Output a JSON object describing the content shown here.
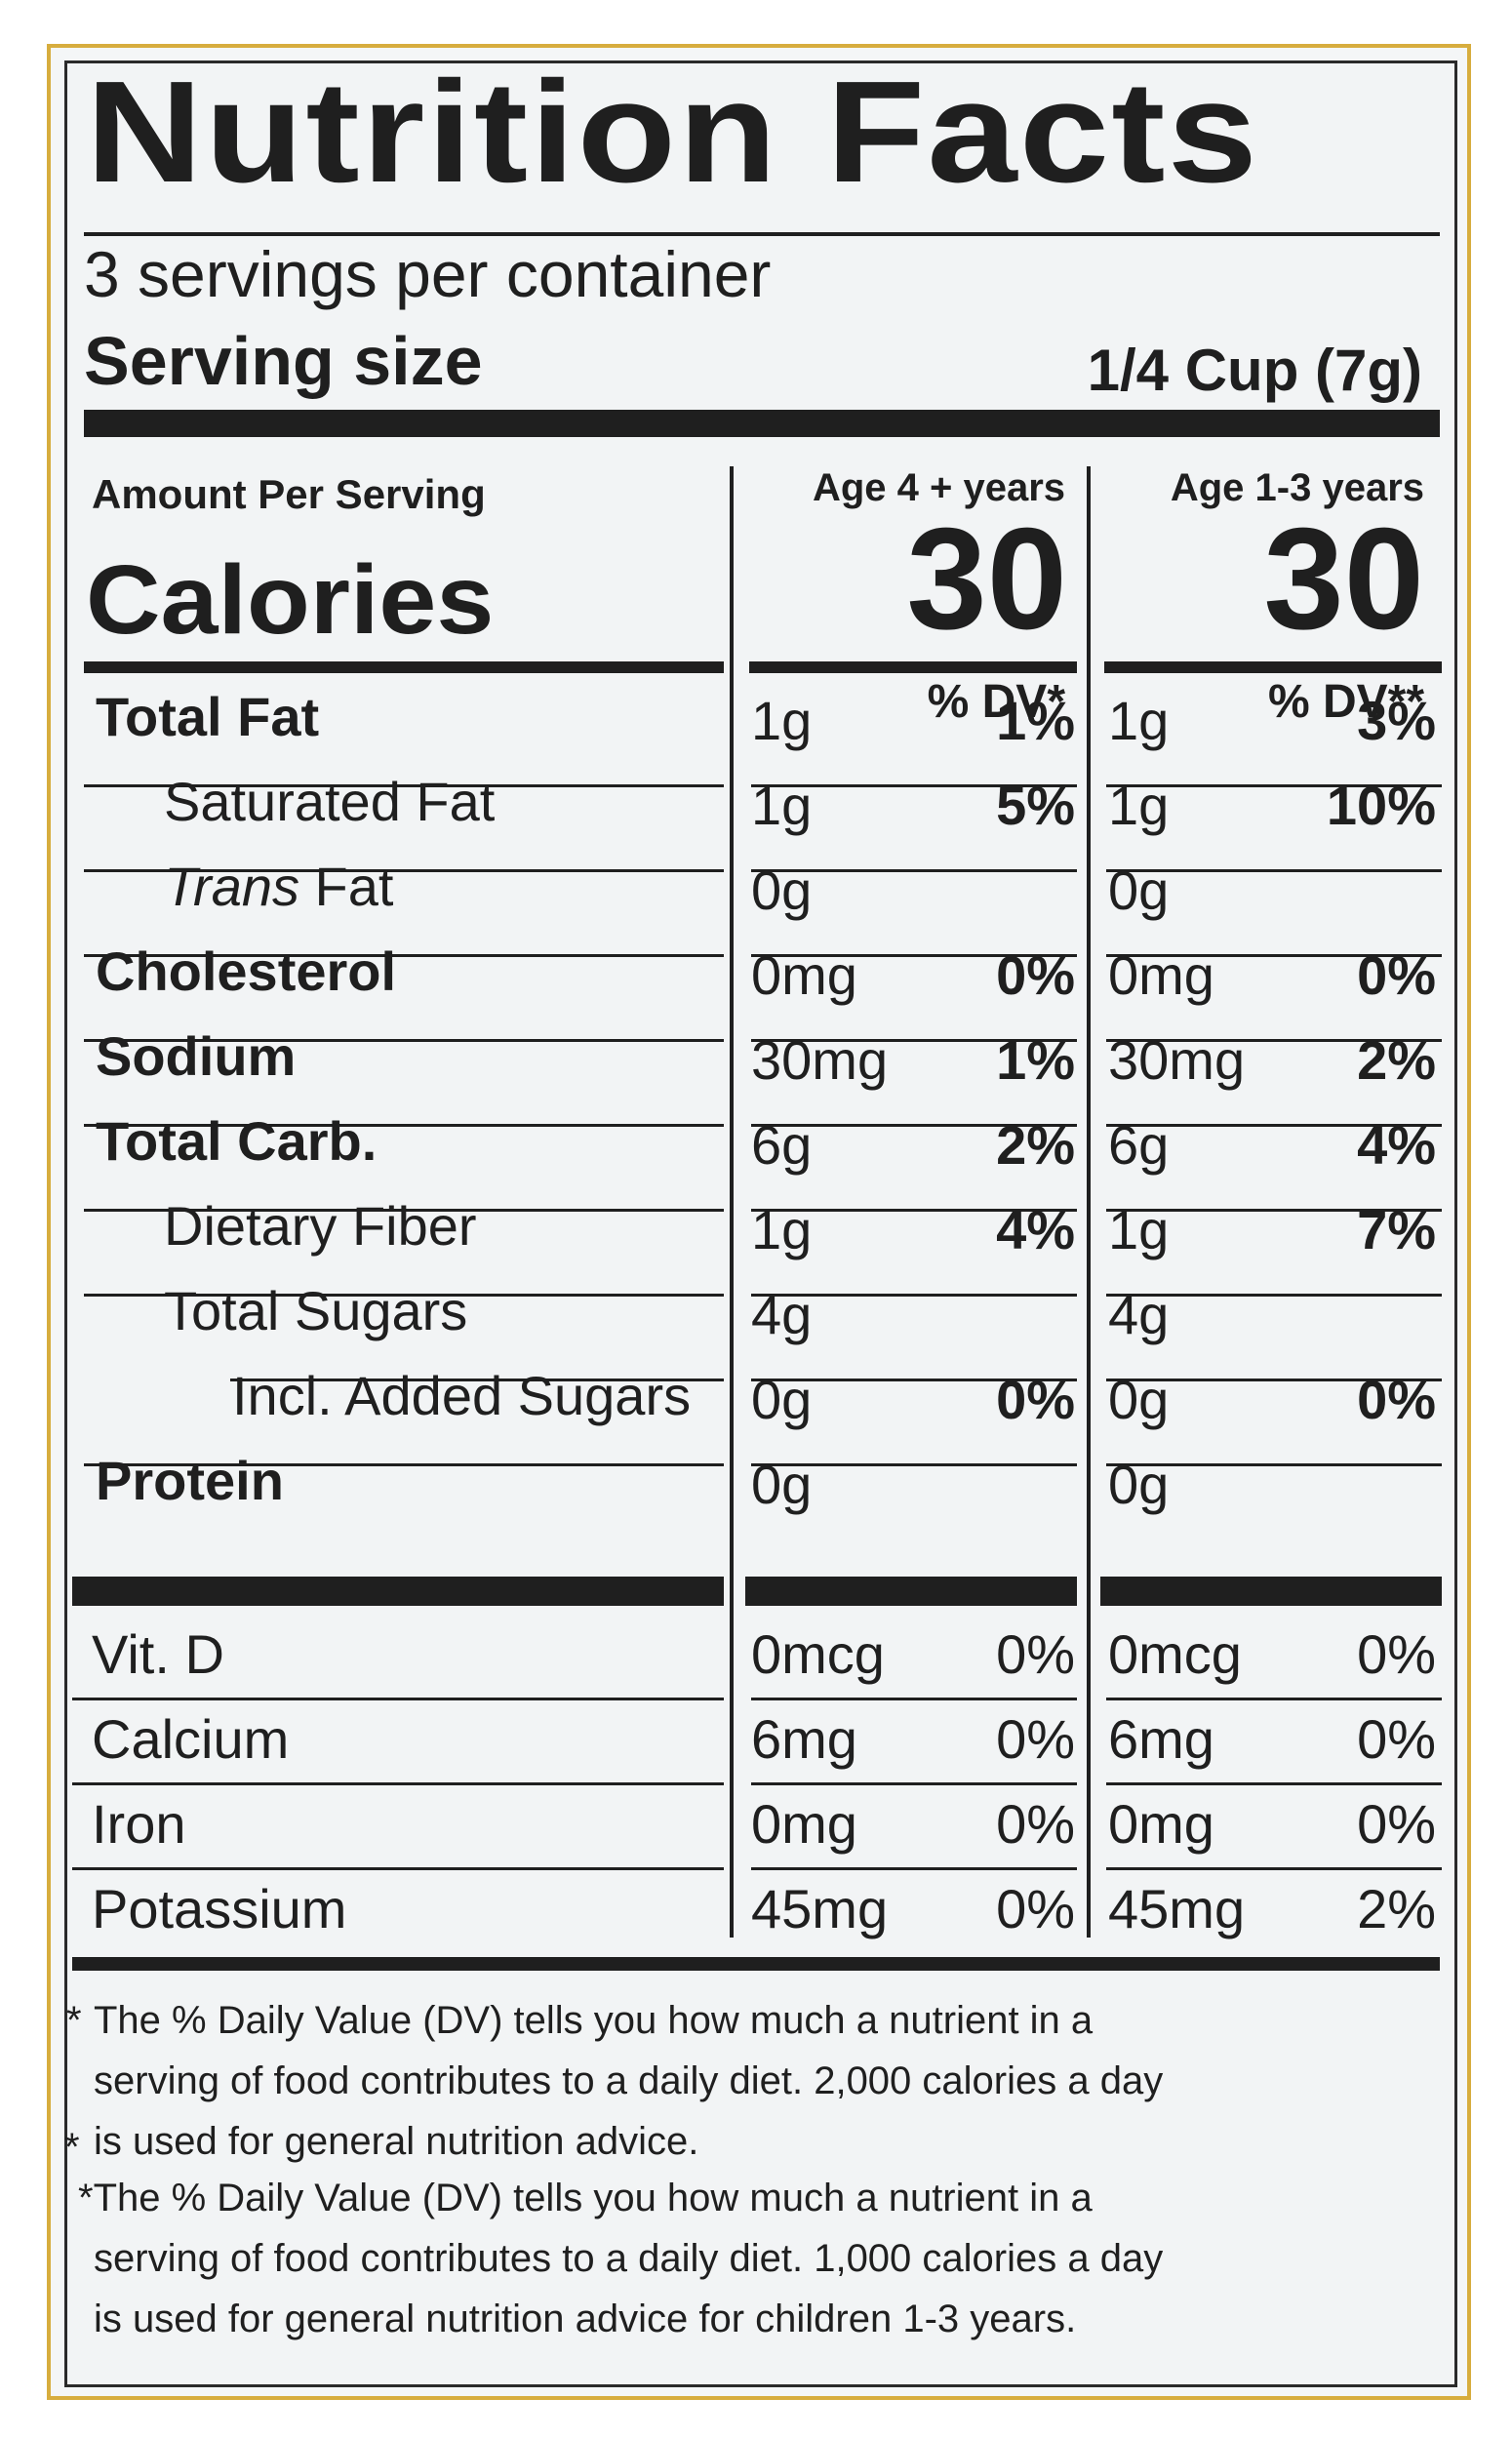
{
  "label": {
    "title": "Nutrition Facts",
    "servings_per_container": "3 servings per container",
    "serving_size_label": "Serving size",
    "serving_size_value": "1/4 Cup (7g)",
    "amount_per_serving": "Amount Per Serving",
    "calories_label": "Calories",
    "columns": [
      {
        "age": "Age 4 + years",
        "calories": "30",
        "dv_header": "% DV*"
      },
      {
        "age": "Age 1-3 years",
        "calories": "30",
        "dv_header": "% DV**"
      }
    ],
    "nutrients": [
      {
        "label_pre": "",
        "label": "Total Fat",
        "c1_amount": "1g",
        "c1_dv": "1%",
        "c2_amount": "1g",
        "c2_dv": "3%"
      },
      {
        "label_pre": "",
        "label": "Saturated Fat",
        "c1_amount": "1g",
        "c1_dv": "5%",
        "c2_amount": "1g",
        "c2_dv": "10%"
      },
      {
        "label_pre": "Trans",
        "label": " Fat",
        "c1_amount": "0g",
        "c1_dv": "",
        "c2_amount": "0g",
        "c2_dv": ""
      },
      {
        "label_pre": "",
        "label": "Cholesterol",
        "c1_amount": "0mg",
        "c1_dv": "0%",
        "c2_amount": "0mg",
        "c2_dv": "0%"
      },
      {
        "label_pre": "",
        "label": "Sodium",
        "c1_amount": "30mg",
        "c1_dv": "1%",
        "c2_amount": "30mg",
        "c2_dv": "2%"
      },
      {
        "label_pre": "",
        "label": "Total Carb.",
        "c1_amount": "6g",
        "c1_dv": "2%",
        "c2_amount": "6g",
        "c2_dv": "4%"
      },
      {
        "label_pre": "",
        "label": "Dietary Fiber",
        "c1_amount": "1g",
        "c1_dv": "4%",
        "c2_amount": "1g",
        "c2_dv": "7%"
      },
      {
        "label_pre": "",
        "label": "Total Sugars",
        "c1_amount": "4g",
        "c1_dv": "",
        "c2_amount": "4g",
        "c2_dv": ""
      },
      {
        "label_pre": "",
        "label": "Incl. Added Sugars",
        "c1_amount": "0g",
        "c1_dv": "0%",
        "c2_amount": "0g",
        "c2_dv": "0%"
      },
      {
        "label_pre": "",
        "label": "Protein",
        "c1_amount": "0g",
        "c1_dv": "",
        "c2_amount": "0g",
        "c2_dv": ""
      }
    ],
    "vitamins": [
      {
        "label": "Vit. D",
        "c1_amount": "0mcg",
        "c1_dv": "0%",
        "c2_amount": "0mcg",
        "c2_dv": "0%"
      },
      {
        "label": "Calcium",
        "c1_amount": "6mg",
        "c1_dv": "0%",
        "c2_amount": "6mg",
        "c2_dv": "0%"
      },
      {
        "label": "Iron",
        "c1_amount": "0mg",
        "c1_dv": "0%",
        "c2_amount": "0mg",
        "c2_dv": "0%"
      },
      {
        "label": "Potassium",
        "c1_amount": "45mg",
        "c1_dv": "0%",
        "c2_amount": "45mg",
        "c2_dv": "2%"
      }
    ],
    "footnotes": [
      {
        "marker": "*",
        "lines": [
          "The % Daily Value (DV) tells you how much a nutrient in a",
          "serving of food contributes to a daily diet. 2,000 calories a day",
          "is used for general nutrition advice."
        ]
      },
      {
        "marker": "*",
        "lines": [
          "*The % Daily Value (DV) tells you how much a nutrient in a",
          "serving of food contributes to a daily diet. 1,000 calories a day",
          "is used for general nutrition advice for children 1-3 years."
        ]
      }
    ]
  },
  "colors": {
    "border_accent": "#d7ad3e",
    "ink": "#1f1f1f",
    "panel_bg": "#f2f4f5"
  }
}
